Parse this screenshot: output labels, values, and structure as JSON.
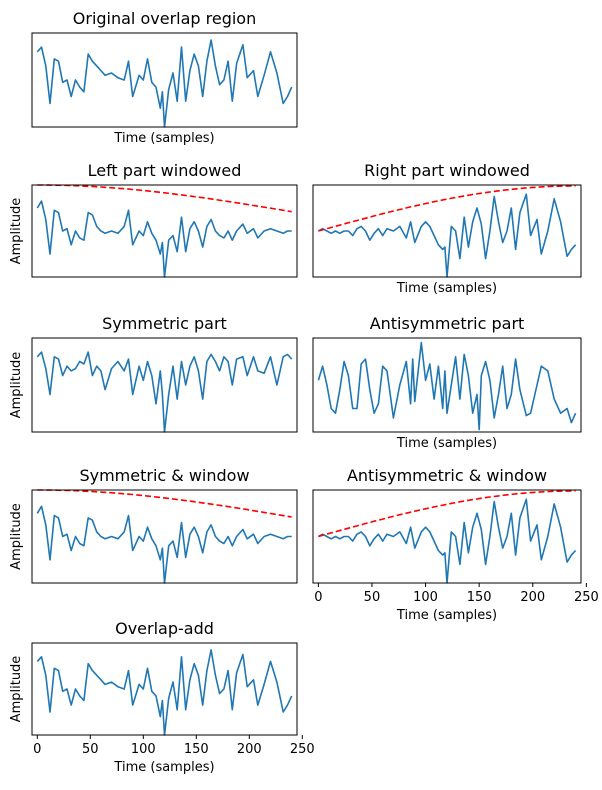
{
  "chart_data": [
    {
      "id": "p0",
      "type": "line",
      "title": "Original overlap region",
      "xlabel": "Time (samples)",
      "ylabel": "",
      "xlim": [
        -5,
        245
      ],
      "ylim": [
        -1.0,
        1.0
      ],
      "signal": "orig",
      "window": null,
      "xticks": []
    },
    {
      "id": "p1",
      "type": "line",
      "title": "Left part windowed",
      "xlabel": "",
      "ylabel": "Amplitude",
      "xlim": [
        -5,
        245
      ],
      "ylim": [
        -1.0,
        1.0
      ],
      "signal": "left",
      "window": "down",
      "xticks": []
    },
    {
      "id": "p2",
      "type": "line",
      "title": "Right part windowed",
      "xlabel": "Time (samples)",
      "ylabel": "",
      "xlim": [
        -5,
        245
      ],
      "ylim": [
        -1.0,
        1.0
      ],
      "signal": "right",
      "window": "up",
      "xticks": []
    },
    {
      "id": "p3",
      "type": "line",
      "title": "Symmetric part",
      "xlabel": "",
      "ylabel": "Amplitude",
      "xlim": [
        -5,
        245
      ],
      "ylim": [
        -1.0,
        1.0
      ],
      "signal": "sym",
      "window": null,
      "xticks": []
    },
    {
      "id": "p4",
      "type": "line",
      "title": "Antisymmetric part",
      "xlabel": "Time (samples)",
      "ylabel": "",
      "xlim": [
        -5,
        245
      ],
      "ylim": [
        -1.0,
        1.0
      ],
      "signal": "anti",
      "window": null,
      "xticks": []
    },
    {
      "id": "p5",
      "type": "line",
      "title": "Symmetric & window",
      "xlabel": "",
      "ylabel": "Amplitude",
      "xlim": [
        -5,
        245
      ],
      "ylim": [
        -1.0,
        1.0
      ],
      "signal": "left",
      "window": "down",
      "xticks": []
    },
    {
      "id": "p6",
      "type": "line",
      "title": "Antisymmetric & window",
      "xlabel": "Time (samples)",
      "ylabel": "",
      "xlim": [
        -5,
        245
      ],
      "ylim": [
        -1.0,
        1.0
      ],
      "signal": "right",
      "window": "up",
      "xticks": [
        "0",
        "50",
        "100",
        "150",
        "200",
        "250"
      ]
    },
    {
      "id": "p7",
      "type": "line",
      "title": "Overlap-add",
      "xlabel": "Time (samples)",
      "ylabel": "Amplitude",
      "xlim": [
        -5,
        245
      ],
      "ylim": [
        -1.0,
        1.0
      ],
      "signal": "orig",
      "window": null,
      "xticks": [
        "0",
        "50",
        "100",
        "150",
        "200",
        "250"
      ]
    }
  ],
  "signals": {
    "orig": [
      [
        0,
        0.6
      ],
      [
        4,
        0.7
      ],
      [
        8,
        0.3
      ],
      [
        12,
        -0.5
      ],
      [
        16,
        0.45
      ],
      [
        20,
        0.4
      ],
      [
        24,
        -0.05
      ],
      [
        28,
        0.0
      ],
      [
        32,
        -0.35
      ],
      [
        36,
        0.0
      ],
      [
        40,
        -0.15
      ],
      [
        44,
        -0.25
      ],
      [
        48,
        0.55
      ],
      [
        52,
        0.4
      ],
      [
        56,
        0.3
      ],
      [
        60,
        0.2
      ],
      [
        64,
        0.1
      ],
      [
        70,
        0.15
      ],
      [
        76,
        0.05
      ],
      [
        82,
        0.0
      ],
      [
        86,
        0.4
      ],
      [
        90,
        -0.35
      ],
      [
        96,
        0.1
      ],
      [
        100,
        0.0
      ],
      [
        104,
        0.45
      ],
      [
        108,
        -0.05
      ],
      [
        112,
        -0.15
      ],
      [
        116,
        -0.6
      ],
      [
        118,
        -0.25
      ],
      [
        120,
        -1.0
      ],
      [
        124,
        -0.2
      ],
      [
        128,
        0.15
      ],
      [
        132,
        -0.45
      ],
      [
        136,
        0.7
      ],
      [
        140,
        -0.45
      ],
      [
        144,
        0.2
      ],
      [
        148,
        0.55
      ],
      [
        152,
        0.3
      ],
      [
        156,
        -0.35
      ],
      [
        160,
        0.4
      ],
      [
        164,
        0.85
      ],
      [
        168,
        0.3
      ],
      [
        172,
        -0.1
      ],
      [
        176,
        0.0
      ],
      [
        180,
        0.4
      ],
      [
        184,
        -0.45
      ],
      [
        188,
        0.35
      ],
      [
        194,
        0.75
      ],
      [
        198,
        0.05
      ],
      [
        204,
        0.2
      ],
      [
        208,
        -0.35
      ],
      [
        214,
        0.1
      ],
      [
        220,
        0.6
      ],
      [
        226,
        0.15
      ],
      [
        232,
        -0.5
      ],
      [
        236,
        -0.35
      ],
      [
        240,
        -0.15
      ]
    ],
    "left": [
      [
        0,
        0.5
      ],
      [
        4,
        0.65
      ],
      [
        8,
        0.25
      ],
      [
        12,
        -0.5
      ],
      [
        16,
        0.45
      ],
      [
        20,
        0.4
      ],
      [
        24,
        0.0
      ],
      [
        28,
        0.05
      ],
      [
        32,
        -0.3
      ],
      [
        36,
        0.0
      ],
      [
        40,
        -0.15
      ],
      [
        44,
        -0.2
      ],
      [
        48,
        0.4
      ],
      [
        52,
        0.35
      ],
      [
        56,
        0.1
      ],
      [
        60,
        0.0
      ],
      [
        64,
        -0.05
      ],
      [
        70,
        0.0
      ],
      [
        76,
        -0.05
      ],
      [
        82,
        0.1
      ],
      [
        86,
        0.45
      ],
      [
        90,
        -0.3
      ],
      [
        96,
        0.0
      ],
      [
        100,
        -0.1
      ],
      [
        104,
        0.2
      ],
      [
        108,
        -0.05
      ],
      [
        112,
        -0.2
      ],
      [
        116,
        -0.5
      ],
      [
        118,
        -0.25
      ],
      [
        120,
        -1.0
      ],
      [
        124,
        -0.2
      ],
      [
        128,
        -0.1
      ],
      [
        132,
        -0.45
      ],
      [
        136,
        0.3
      ],
      [
        140,
        -0.45
      ],
      [
        144,
        0.05
      ],
      [
        148,
        0.2
      ],
      [
        152,
        0.0
      ],
      [
        156,
        -0.35
      ],
      [
        160,
        0.1
      ],
      [
        164,
        0.25
      ],
      [
        168,
        0.0
      ],
      [
        172,
        -0.1
      ],
      [
        176,
        -0.15
      ],
      [
        180,
        0.0
      ],
      [
        184,
        -0.2
      ],
      [
        188,
        0.0
      ],
      [
        194,
        0.15
      ],
      [
        198,
        -0.05
      ],
      [
        204,
        0.05
      ],
      [
        208,
        -0.15
      ],
      [
        214,
        0.0
      ],
      [
        220,
        0.05
      ],
      [
        226,
        0.0
      ],
      [
        232,
        -0.05
      ],
      [
        236,
        0.0
      ],
      [
        240,
        0.0
      ]
    ],
    "right": [
      [
        0,
        0.0
      ],
      [
        4,
        0.05
      ],
      [
        8,
        0.0
      ],
      [
        12,
        -0.05
      ],
      [
        16,
        0.0
      ],
      [
        20,
        -0.05
      ],
      [
        24,
        0.0
      ],
      [
        28,
        0.0
      ],
      [
        32,
        -0.1
      ],
      [
        36,
        0.05
      ],
      [
        40,
        0.1
      ],
      [
        44,
        0.0
      ],
      [
        48,
        -0.2
      ],
      [
        52,
        -0.05
      ],
      [
        56,
        0.05
      ],
      [
        60,
        -0.1
      ],
      [
        64,
        0.05
      ],
      [
        70,
        0.0
      ],
      [
        76,
        0.1
      ],
      [
        82,
        -0.15
      ],
      [
        86,
        0.2
      ],
      [
        90,
        -0.25
      ],
      [
        96,
        0.1
      ],
      [
        100,
        0.2
      ],
      [
        104,
        0.1
      ],
      [
        108,
        -0.1
      ],
      [
        112,
        -0.3
      ],
      [
        116,
        -0.4
      ],
      [
        118,
        -0.35
      ],
      [
        120,
        -1.0
      ],
      [
        124,
        0.1
      ],
      [
        128,
        0.0
      ],
      [
        132,
        -0.6
      ],
      [
        136,
        0.3
      ],
      [
        140,
        -0.35
      ],
      [
        144,
        0.2
      ],
      [
        148,
        0.5
      ],
      [
        152,
        0.15
      ],
      [
        156,
        -0.6
      ],
      [
        160,
        0.0
      ],
      [
        164,
        0.75
      ],
      [
        168,
        0.2
      ],
      [
        172,
        -0.25
      ],
      [
        176,
        0.0
      ],
      [
        180,
        0.5
      ],
      [
        184,
        -0.4
      ],
      [
        188,
        0.4
      ],
      [
        194,
        0.8
      ],
      [
        198,
        -0.1
      ],
      [
        204,
        0.25
      ],
      [
        208,
        -0.5
      ],
      [
        214,
        0.0
      ],
      [
        220,
        0.7
      ],
      [
        226,
        0.2
      ],
      [
        232,
        -0.55
      ],
      [
        236,
        -0.4
      ],
      [
        240,
        -0.3
      ]
    ],
    "sym": [
      [
        0,
        0.6
      ],
      [
        4,
        0.7
      ],
      [
        8,
        0.35
      ],
      [
        12,
        -0.2
      ],
      [
        16,
        0.6
      ],
      [
        20,
        0.55
      ],
      [
        24,
        0.2
      ],
      [
        28,
        0.4
      ],
      [
        32,
        0.3
      ],
      [
        36,
        0.35
      ],
      [
        40,
        0.5
      ],
      [
        44,
        0.45
      ],
      [
        48,
        0.7
      ],
      [
        52,
        0.2
      ],
      [
        56,
        0.4
      ],
      [
        60,
        0.3
      ],
      [
        64,
        -0.1
      ],
      [
        70,
        0.35
      ],
      [
        76,
        0.5
      ],
      [
        82,
        0.3
      ],
      [
        86,
        0.55
      ],
      [
        90,
        -0.2
      ],
      [
        96,
        0.4
      ],
      [
        100,
        0.1
      ],
      [
        104,
        0.5
      ],
      [
        108,
        0.2
      ],
      [
        112,
        -0.4
      ],
      [
        116,
        0.3
      ],
      [
        118,
        -0.2
      ],
      [
        120,
        -1.0
      ],
      [
        124,
        -0.2
      ],
      [
        128,
        0.4
      ],
      [
        132,
        -0.3
      ],
      [
        136,
        0.5
      ],
      [
        140,
        0.0
      ],
      [
        144,
        0.4
      ],
      [
        148,
        0.6
      ],
      [
        152,
        0.3
      ],
      [
        156,
        -0.3
      ],
      [
        160,
        0.5
      ],
      [
        164,
        0.65
      ],
      [
        168,
        0.5
      ],
      [
        172,
        0.3
      ],
      [
        176,
        0.6
      ],
      [
        180,
        0.5
      ],
      [
        184,
        0.0
      ],
      [
        188,
        0.55
      ],
      [
        194,
        0.6
      ],
      [
        198,
        0.2
      ],
      [
        204,
        0.6
      ],
      [
        208,
        0.3
      ],
      [
        214,
        0.25
      ],
      [
        220,
        0.6
      ],
      [
        226,
        0.0
      ],
      [
        232,
        0.6
      ],
      [
        236,
        0.65
      ],
      [
        240,
        0.55
      ]
    ],
    "anti": [
      [
        0,
        0.1
      ],
      [
        4,
        0.4
      ],
      [
        8,
        0.0
      ],
      [
        12,
        -0.5
      ],
      [
        16,
        -0.6
      ],
      [
        20,
        -0.1
      ],
      [
        24,
        0.5
      ],
      [
        28,
        0.2
      ],
      [
        32,
        -0.5
      ],
      [
        36,
        -0.5
      ],
      [
        40,
        0.45
      ],
      [
        44,
        0.55
      ],
      [
        48,
        -0.1
      ],
      [
        52,
        -0.6
      ],
      [
        56,
        -0.4
      ],
      [
        60,
        0.4
      ],
      [
        64,
        0.3
      ],
      [
        70,
        -0.7
      ],
      [
        76,
        0.0
      ],
      [
        82,
        0.5
      ],
      [
        86,
        -0.4
      ],
      [
        88,
        0.55
      ],
      [
        90,
        -0.35
      ],
      [
        96,
        0.9
      ],
      [
        100,
        0.1
      ],
      [
        104,
        0.45
      ],
      [
        108,
        -0.3
      ],
      [
        112,
        0.4
      ],
      [
        116,
        -0.5
      ],
      [
        118,
        0.3
      ],
      [
        120,
        -0.6
      ],
      [
        124,
        0.0
      ],
      [
        128,
        0.6
      ],
      [
        132,
        -0.3
      ],
      [
        136,
        0.65
      ],
      [
        140,
        0.2
      ],
      [
        144,
        -0.6
      ],
      [
        148,
        -0.2
      ],
      [
        150,
        -0.95
      ],
      [
        152,
        0.2
      ],
      [
        156,
        0.5
      ],
      [
        160,
        0.1
      ],
      [
        164,
        -0.7
      ],
      [
        168,
        -0.2
      ],
      [
        172,
        0.4
      ],
      [
        176,
        -0.5
      ],
      [
        180,
        -0.2
      ],
      [
        184,
        0.55
      ],
      [
        188,
        -0.1
      ],
      [
        194,
        -0.65
      ],
      [
        198,
        -0.6
      ],
      [
        204,
        0.0
      ],
      [
        208,
        0.4
      ],
      [
        214,
        0.3
      ],
      [
        220,
        -0.3
      ],
      [
        226,
        -0.6
      ],
      [
        232,
        -0.5
      ],
      [
        236,
        -0.8
      ],
      [
        240,
        -0.6
      ]
    ]
  },
  "colors": {
    "line": "#1f77b4",
    "window": "#ff0000"
  }
}
